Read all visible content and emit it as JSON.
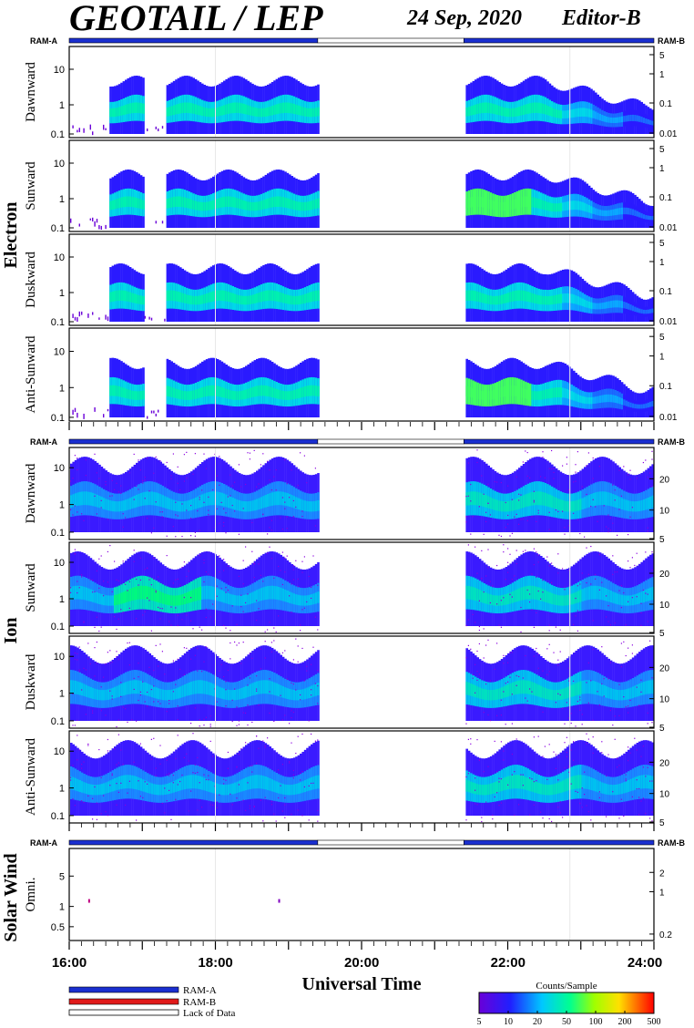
{
  "header": {
    "title": "GEOTAIL / LEP",
    "date": "24 Sep, 2020",
    "editor": "Editor-B"
  },
  "chart_data": {
    "type": "heatmap",
    "xaxis": {
      "label": "Universal Time",
      "range_hours": [
        16,
        24
      ],
      "tick_labels": [
        "16:00",
        "18:00",
        "20:00",
        "22:00",
        "24:00"
      ],
      "tick_hours": [
        16,
        18,
        20,
        22,
        24
      ]
    },
    "mode_bar": {
      "left_label": "RAM-A",
      "right_label": "RAM-B",
      "segments": [
        {
          "mode": "RAM-A",
          "start": 16.0,
          "end": 19.4
        },
        {
          "mode": "none",
          "start": 19.4,
          "end": 21.4
        },
        {
          "mode": "RAM-A",
          "start": 21.4,
          "end": 24.0
        }
      ]
    },
    "data_gaps": [
      [
        19.4,
        21.4
      ]
    ],
    "groups": [
      {
        "name": "Electron",
        "panels": [
          {
            "label": "Dawnward",
            "left_ticks": [
              "10",
              "1",
              "0.1"
            ],
            "right_ticks": [
              "5",
              "1",
              "0.1",
              "0.01"
            ]
          },
          {
            "label": "Sunward",
            "left_ticks": [
              "10",
              "1",
              "0.1"
            ],
            "right_ticks": [
              "5",
              "1",
              "0.1",
              "0.01"
            ]
          },
          {
            "label": "Duskward",
            "left_ticks": [
              "10",
              "1",
              "0.1"
            ],
            "right_ticks": [
              "5",
              "1",
              "0.1",
              "0.01"
            ]
          },
          {
            "label": "Anti-Sunward",
            "left_ticks": [
              "10",
              "1",
              "0.1"
            ],
            "right_ticks": [
              "5",
              "1",
              "0.1",
              "0.01"
            ]
          }
        ]
      },
      {
        "name": "Ion",
        "panels": [
          {
            "label": "Dawnward",
            "left_ticks": [
              "10",
              "1",
              "0.1"
            ],
            "right_ticks": [
              "20",
              "10",
              "5"
            ]
          },
          {
            "label": "Sunward",
            "left_ticks": [
              "10",
              "1",
              "0.1"
            ],
            "right_ticks": [
              "20",
              "10",
              "5"
            ]
          },
          {
            "label": "Duskward",
            "left_ticks": [
              "10",
              "1",
              "0.1"
            ],
            "right_ticks": [
              "20",
              "10",
              "5"
            ]
          },
          {
            "label": "Anti-Sunward",
            "left_ticks": [
              "10",
              "1",
              "0.1"
            ],
            "right_ticks": [
              "20",
              "10",
              "5"
            ]
          }
        ]
      },
      {
        "name": "Solar Wind",
        "panels": [
          {
            "label": "Omni.",
            "left_ticks": [
              "5",
              "1",
              "0.5"
            ],
            "right_ticks": [
              "2",
              "1",
              "0.2"
            ]
          }
        ]
      }
    ],
    "legend": {
      "items": [
        {
          "label": "RAM-A",
          "color": "#1a2fd0"
        },
        {
          "label": "RAM-B",
          "color": "#e01a1a"
        },
        {
          "label": "Lack of Data",
          "color": "#ffffff"
        }
      ]
    },
    "colorbar": {
      "title": "Counts/Sample",
      "ticks": [
        "5",
        "10",
        "20",
        "50",
        "100",
        "200",
        "500"
      ],
      "colors": [
        "#6a00d8",
        "#2020ff",
        "#00c8ff",
        "#00ff90",
        "#a0ff00",
        "#ffe000",
        "#ff7000",
        "#ff0000"
      ]
    }
  }
}
